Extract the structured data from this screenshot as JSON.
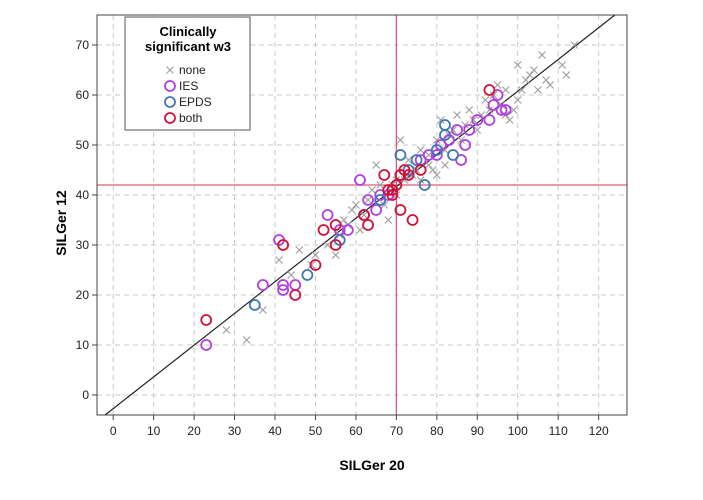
{
  "chart_data": {
    "type": "scatter",
    "xlabel": "SILGer 20",
    "ylabel": "SILGer 12",
    "xlim": [
      -4,
      127
    ],
    "ylim": [
      -4,
      76
    ],
    "x_ticks": [
      "0",
      "10",
      "20",
      "30",
      "40",
      "50",
      "60",
      "70",
      "80",
      "90",
      "100",
      "110",
      "120"
    ],
    "y_ticks": [
      "0",
      "10",
      "20",
      "30",
      "40",
      "50",
      "60",
      "70"
    ],
    "grid": true,
    "reference_lines": {
      "vertical_x": 70,
      "horizontal_y": 42,
      "color": "#e05a7a"
    },
    "fit_line": {
      "points": [
        [
          -2,
          -4
        ],
        [
          124,
          76
        ]
      ],
      "color": "#222222"
    },
    "legend": {
      "title_line1": "Clinically",
      "title_line2": "significant w3",
      "position": "top-left",
      "entries": [
        {
          "label": "none",
          "marker": "cross",
          "color": "#a0a0a0"
        },
        {
          "label": "IES",
          "marker": "circle",
          "color": "#b040e0"
        },
        {
          "label": "EPDS",
          "marker": "circle",
          "color": "#3f77b8"
        },
        {
          "label": "both",
          "marker": "circle",
          "color": "#d01238"
        }
      ]
    },
    "series": [
      {
        "name": "none",
        "marker": "cross",
        "color": "#a0a0a0",
        "points": [
          [
            28,
            13
          ],
          [
            33,
            11
          ],
          [
            37,
            17
          ],
          [
            41,
            27
          ],
          [
            44,
            24
          ],
          [
            46,
            29
          ],
          [
            49,
            26
          ],
          [
            50,
            28
          ],
          [
            53,
            30
          ],
          [
            55,
            28
          ],
          [
            56,
            32
          ],
          [
            57,
            35
          ],
          [
            58,
            34
          ],
          [
            59,
            37
          ],
          [
            60,
            38
          ],
          [
            61,
            33
          ],
          [
            62,
            36
          ],
          [
            63,
            39
          ],
          [
            64,
            41
          ],
          [
            65,
            46
          ],
          [
            66,
            42
          ],
          [
            67,
            38
          ],
          [
            68,
            35
          ],
          [
            69,
            42
          ],
          [
            70,
            40
          ],
          [
            71,
            51
          ],
          [
            72,
            43
          ],
          [
            73,
            47
          ],
          [
            74,
            44
          ],
          [
            75,
            45
          ],
          [
            76,
            49
          ],
          [
            78,
            46
          ],
          [
            79,
            45
          ],
          [
            80,
            51
          ],
          [
            80,
            44
          ],
          [
            81,
            55
          ],
          [
            82,
            49
          ],
          [
            83,
            52
          ],
          [
            84,
            53
          ],
          [
            85,
            56
          ],
          [
            86,
            51
          ],
          [
            87,
            54
          ],
          [
            88,
            57
          ],
          [
            89,
            55
          ],
          [
            90,
            53
          ],
          [
            91,
            56
          ],
          [
            92,
            59
          ],
          [
            93,
            57
          ],
          [
            94,
            60
          ],
          [
            95,
            62
          ],
          [
            96,
            58
          ],
          [
            97,
            56
          ],
          [
            98,
            55
          ],
          [
            99,
            57
          ],
          [
            100,
            59
          ],
          [
            100,
            66
          ],
          [
            101,
            61
          ],
          [
            102,
            63
          ],
          [
            103,
            64
          ],
          [
            104,
            65
          ],
          [
            105,
            61
          ],
          [
            106,
            68
          ],
          [
            107,
            63
          ],
          [
            108,
            62
          ],
          [
            111,
            66
          ],
          [
            112,
            64
          ],
          [
            114,
            70
          ],
          [
            97,
            61
          ],
          [
            76,
            43
          ],
          [
            70,
            43
          ],
          [
            78,
            48
          ],
          [
            82,
            46
          ]
        ]
      },
      {
        "name": "IES",
        "marker": "circle",
        "color": "#b040e0",
        "points": [
          [
            23,
            10
          ],
          [
            37,
            22
          ],
          [
            41,
            31
          ],
          [
            42,
            22
          ],
          [
            42,
            21
          ],
          [
            45,
            22
          ],
          [
            53,
            36
          ],
          [
            56,
            33
          ],
          [
            58,
            33
          ],
          [
            61,
            43
          ],
          [
            62,
            36
          ],
          [
            63,
            39
          ],
          [
            65,
            37
          ],
          [
            66,
            40
          ],
          [
            68,
            40
          ],
          [
            71,
            44
          ],
          [
            76,
            47
          ],
          [
            78,
            48
          ],
          [
            80,
            48
          ],
          [
            81,
            50
          ],
          [
            83,
            51
          ],
          [
            85,
            53
          ],
          [
            86,
            47
          ],
          [
            87,
            50
          ],
          [
            88,
            53
          ],
          [
            90,
            55
          ],
          [
            93,
            55
          ],
          [
            94,
            58
          ],
          [
            95,
            60
          ],
          [
            97,
            57
          ],
          [
            96,
            57
          ]
        ]
      },
      {
        "name": "EPDS",
        "marker": "circle",
        "color": "#3f77b8",
        "points": [
          [
            35,
            18
          ],
          [
            48,
            24
          ],
          [
            56,
            31
          ],
          [
            66,
            39
          ],
          [
            71,
            48
          ],
          [
            73,
            45
          ],
          [
            75,
            47
          ],
          [
            77,
            42
          ],
          [
            80,
            49
          ],
          [
            82,
            54
          ],
          [
            82,
            52
          ],
          [
            84,
            48
          ]
        ]
      },
      {
        "name": "both",
        "marker": "circle",
        "color": "#d01238",
        "points": [
          [
            23,
            15
          ],
          [
            42,
            30
          ],
          [
            45,
            20
          ],
          [
            50,
            26
          ],
          [
            52,
            33
          ],
          [
            55,
            34
          ],
          [
            55,
            30
          ],
          [
            62,
            36
          ],
          [
            63,
            34
          ],
          [
            67,
            44
          ],
          [
            68,
            41
          ],
          [
            69,
            41
          ],
          [
            69,
            40
          ],
          [
            70,
            42
          ],
          [
            71,
            37
          ],
          [
            71,
            44
          ],
          [
            72,
            45
          ],
          [
            73,
            44
          ],
          [
            74,
            35
          ],
          [
            76,
            45
          ],
          [
            93,
            61
          ]
        ]
      }
    ]
  }
}
